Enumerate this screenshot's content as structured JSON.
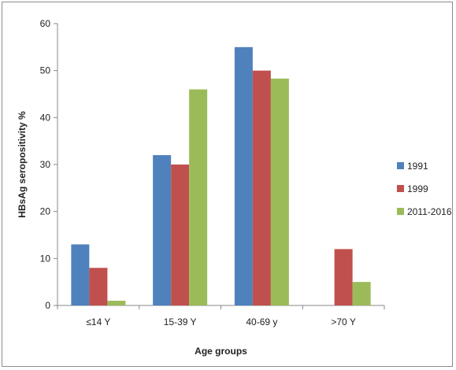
{
  "chart_data": {
    "type": "bar",
    "title": "",
    "xlabel": "Age groups",
    "ylabel": "HBsAg seropositivity %",
    "categories": [
      "≤14 Y",
      "15-39 Y",
      "40-69 y",
      ">70 Y"
    ],
    "series": [
      {
        "name": "1991",
        "color": "#4f81bd",
        "values": [
          13,
          32,
          55,
          null
        ]
      },
      {
        "name": "1999",
        "color": "#c0504d",
        "values": [
          8,
          30,
          50,
          12
        ]
      },
      {
        "name": "2011-2016",
        "color": "#9bbb59",
        "values": [
          1,
          46,
          48.3,
          5
        ]
      }
    ],
    "ylim": [
      0,
      60
    ],
    "yticks": [
      0,
      10,
      20,
      30,
      40,
      50,
      60
    ],
    "grid": false,
    "legend_position": "right"
  }
}
